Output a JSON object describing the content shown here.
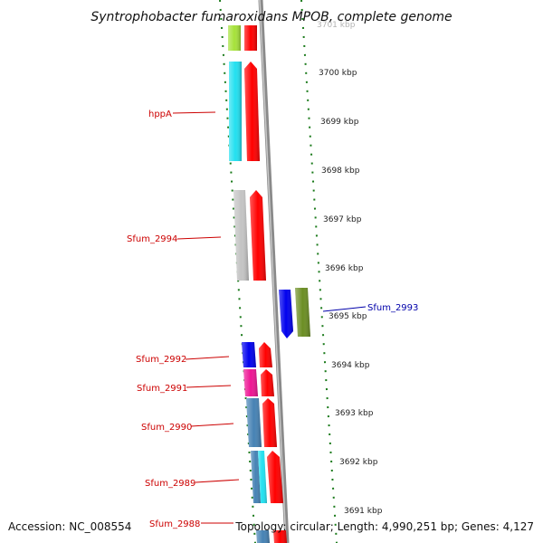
{
  "title": "Syntrophobacter fumaroxidans MPOB, complete genome",
  "footer": {
    "accession": "Accession: NC_008554",
    "topology": "Topology: circular; Length: 4,990,251 bp; Genes: 4,127"
  },
  "colors": {
    "label_red": "#cc0000",
    "label_blue": "#0000aa",
    "tick_green": "#1a7a1a",
    "backbone": "#8a8a8a"
  },
  "ruler": [
    "3701 kbp",
    "3700 kbp",
    "3699 kbp",
    "3698 kbp",
    "3697 kbp",
    "3696 kbp",
    "3695 kbp",
    "3694 kbp",
    "3693 kbp",
    "3692 kbp",
    "3691 kbp"
  ],
  "genes": [
    {
      "label": "",
      "strand": "-",
      "color": "#a6e23a"
    },
    {
      "label": "hppA",
      "strand": "-",
      "color": "#22e0f0"
    },
    {
      "label": "Sfum_2994",
      "strand": "-",
      "color": "#c4c4c4"
    },
    {
      "label": "Sfum_2993",
      "strand": "+",
      "color": "#0000ee",
      "color2": "#6b8e23"
    },
    {
      "label": "Sfum_2992",
      "strand": "-",
      "color": "#0000ee"
    },
    {
      "label": "Sfum_2991",
      "strand": "-",
      "color": "#ee1493"
    },
    {
      "label": "Sfum_2990",
      "strand": "-",
      "color": "#4682b4"
    },
    {
      "label": "Sfum_2989",
      "strand": "-",
      "color": "#4682b4",
      "color2": "#22e0f0"
    },
    {
      "label": "Sfum_2988",
      "strand": "-",
      "color": "#4682b4"
    }
  ]
}
